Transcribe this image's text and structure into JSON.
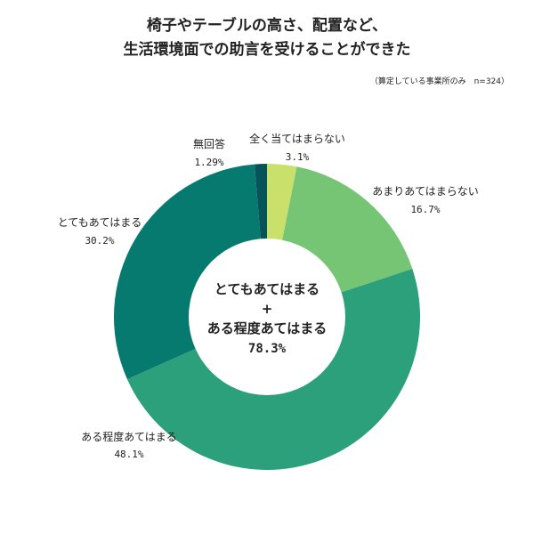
{
  "title": {
    "line1": "椅子やテーブルの高さ、配置など、",
    "line2": "生活環境面での助言を受けることができた"
  },
  "note": "（算定している事業所のみ　n=324）",
  "chart_data": {
    "type": "pie",
    "donut": true,
    "categories": [
      "全く当てはまらない",
      "あまりあてはまらない",
      "ある程度あてはまる",
      "とてもあてはまる",
      "無回答"
    ],
    "values": [
      3.1,
      16.7,
      48.1,
      30.2,
      1.29
    ],
    "value_labels": [
      "3.1%",
      "16.7%",
      "48.1%",
      "30.2%",
      "1.29%"
    ],
    "colors": [
      "#c9e06a",
      "#75c574",
      "#2ba07a",
      "#077a70",
      "#06545a"
    ],
    "center": {
      "line1": "とてもあてはまる",
      "line2": "+",
      "line3": "ある程度あてはまる",
      "value": "78.3%"
    }
  }
}
